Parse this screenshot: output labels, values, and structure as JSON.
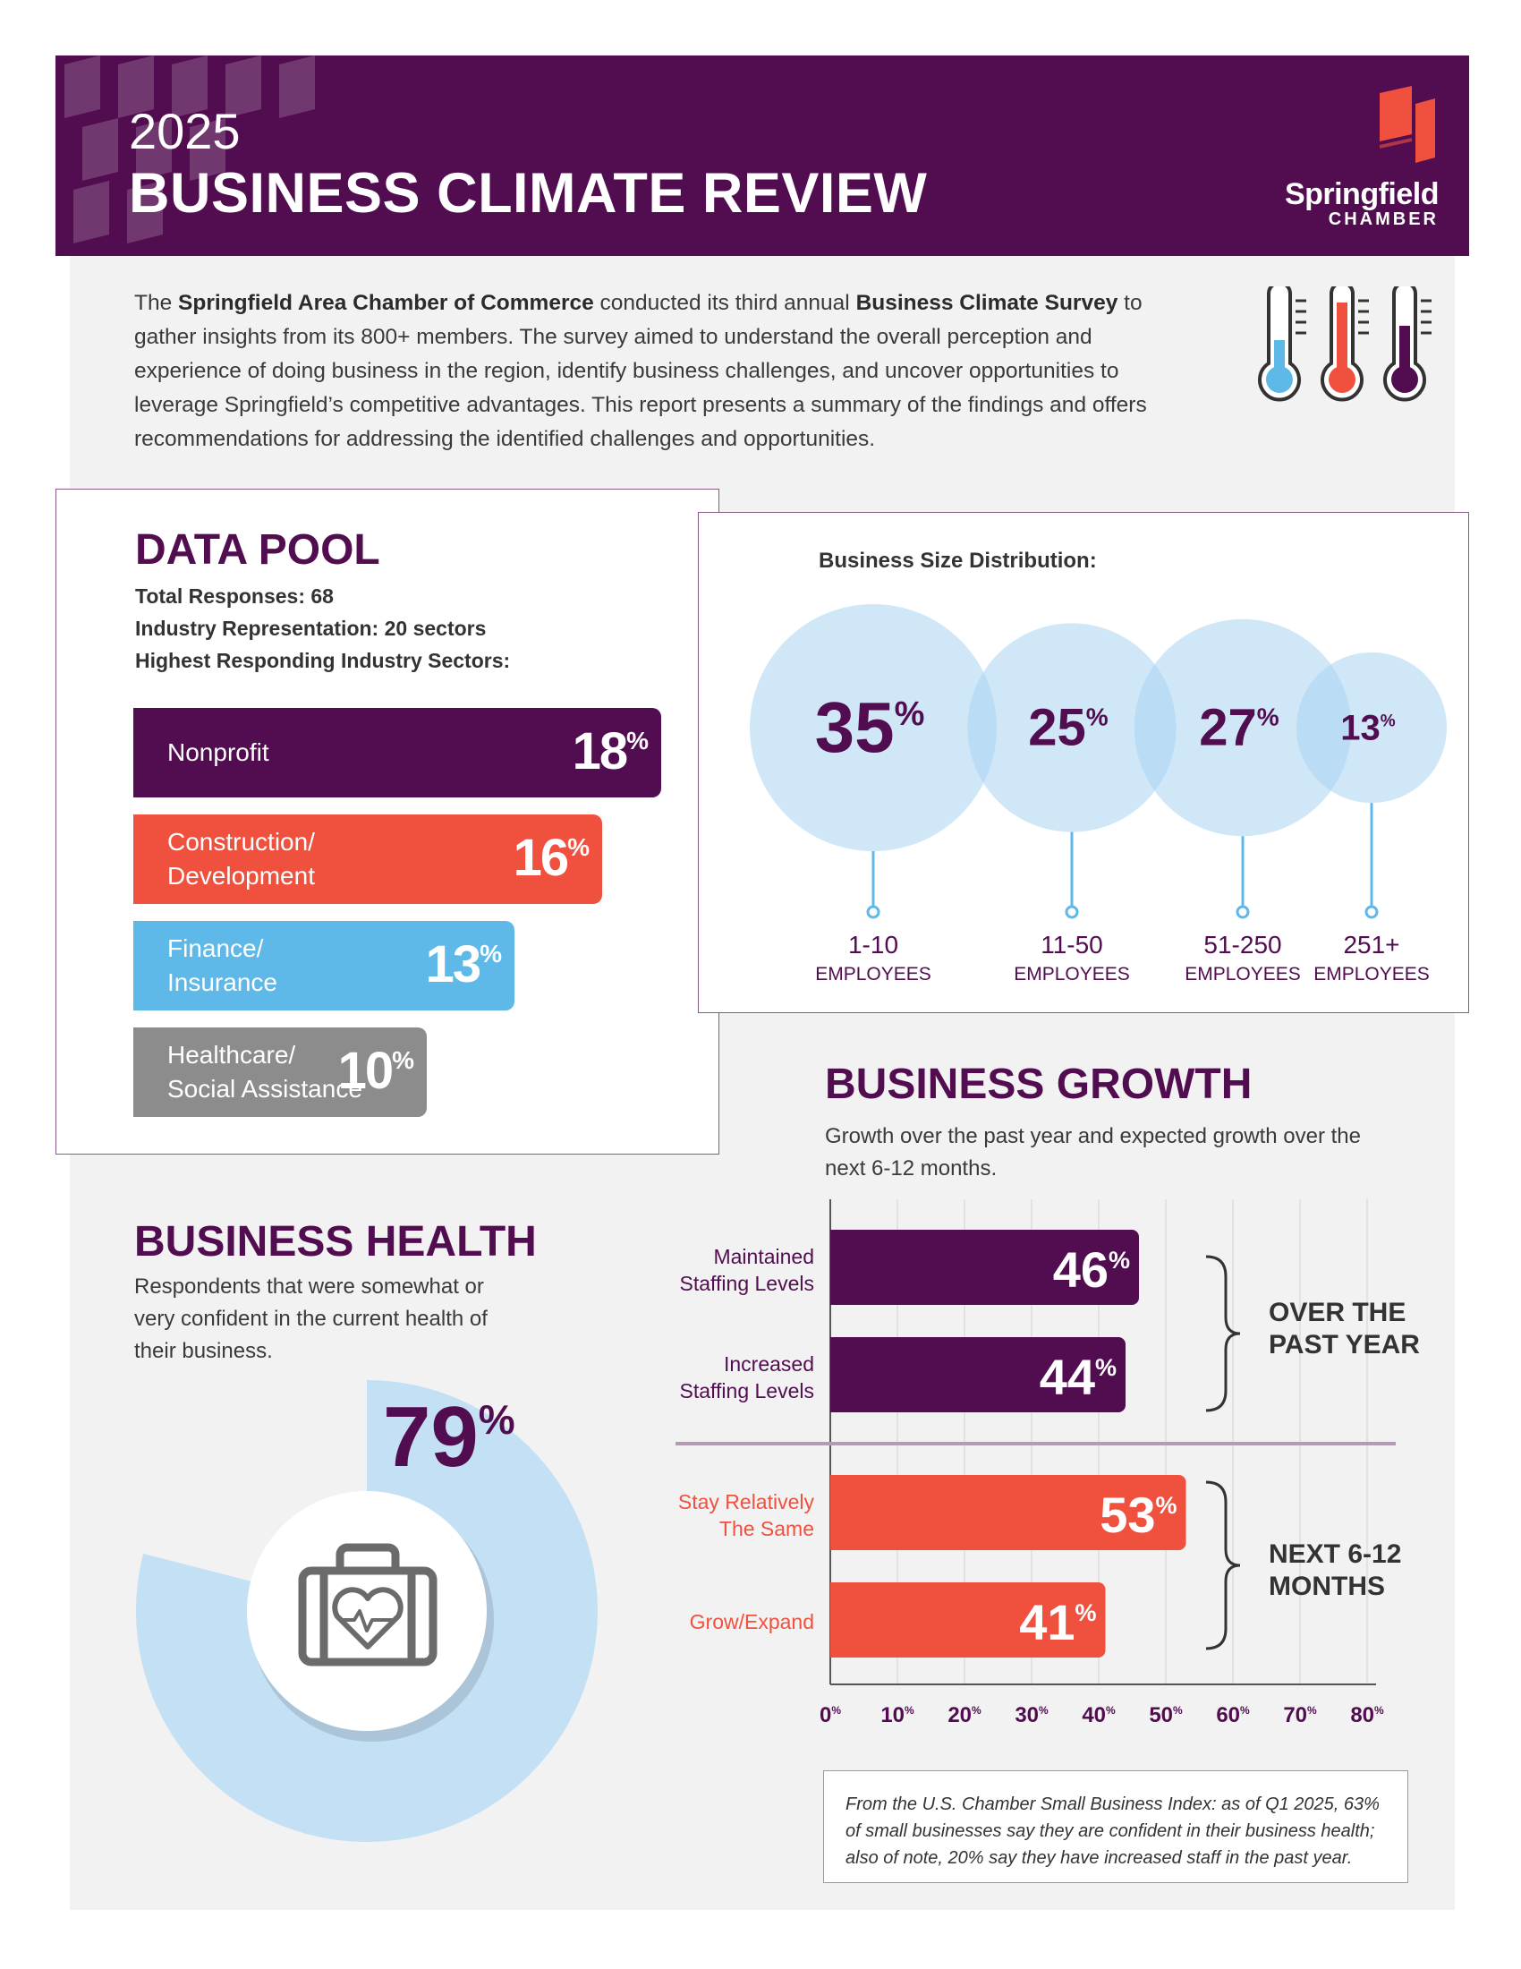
{
  "header": {
    "year": "2025",
    "title": "BUSINESS CLIMATE REVIEW",
    "logo_name": "Springfield",
    "logo_sub": "CHAMBER"
  },
  "colors": {
    "purple": "#520d50",
    "orange": "#f0513e",
    "blue": "#5fb9e8",
    "gray": "#8c8c8c",
    "light_blue": "#c3e0f5"
  },
  "intro": {
    "p1": "The ",
    "org": "Springfield Area Chamber of Commerce",
    "p2": " conducted its third annual ",
    "survey": "Business Climate Survey",
    "p3": " to gather insights from its 800+ members. The survey aimed to understand the overall perception and experience of doing business in the region, identify business challenges, and uncover opportunities to leverage Springfield’s competitive advantages. This report presents a summary of the findings and offers recommendations for addressing the identified challenges and opportunities."
  },
  "data_pool": {
    "title": "DATA POOL",
    "total_responses": "Total Responses: 68",
    "industry_rep": "Industry Representation: 20 sectors",
    "highest": "Highest Responding Industry Sectors:"
  },
  "business_size": {
    "title": "Business Size Distribution:"
  },
  "growth": {
    "title": "BUSINESS GROWTH",
    "subtitle": "Growth over the past year and expected growth over the next 6-12 months.",
    "group1": "OVER THE PAST YEAR",
    "group2": "NEXT 6-12 MONTHS"
  },
  "health": {
    "title": "BUSINESS HEALTH",
    "subtitle": "Respondents that were somewhat or very confident in the current health of their business."
  },
  "note": "From the U.S. Chamber Small Business Index: as of Q1 2025, 63% of small businesses say they are confident in their business health; also of note, 20% say they have increased staff in the past year.",
  "chart_data": [
    {
      "type": "bar",
      "orientation": "horizontal",
      "title": "Highest Responding Industry Sectors:",
      "categories": [
        "Nonprofit",
        "Construction/\nDevelopment",
        "Finance/\nInsurance",
        "Healthcare/\nSocial Assistance"
      ],
      "values": [
        18,
        16,
        13,
        10
      ],
      "unit": "%",
      "colors": [
        "#520d50",
        "#f0513e",
        "#5fb9e8",
        "#8c8c8c"
      ]
    },
    {
      "type": "bubble",
      "title": "Business Size Distribution:",
      "categories": [
        "1-10",
        "11-50",
        "51-250",
        "251+"
      ],
      "category_sub": "EMPLOYEES",
      "values": [
        35,
        25,
        27,
        13
      ],
      "unit": "%"
    },
    {
      "type": "bar",
      "orientation": "horizontal",
      "title": "BUSINESS GROWTH",
      "categories": [
        "Maintained\nStaffing Levels",
        "Increased\nStaffing Levels",
        "Stay Relatively\nThe Same",
        "Grow/Expand"
      ],
      "values": [
        46,
        44,
        53,
        41
      ],
      "unit": "%",
      "groups": [
        "OVER THE PAST YEAR",
        "OVER THE PAST YEAR",
        "NEXT 6-12 MONTHS",
        "NEXT 6-12 MONTHS"
      ],
      "xlim": [
        0,
        80
      ],
      "xticks": [
        0,
        10,
        20,
        30,
        40,
        50,
        60,
        70,
        80
      ],
      "grid": true
    },
    {
      "type": "donut",
      "title": "BUSINESS HEALTH",
      "value": 79,
      "unit": "%",
      "icon": "health-briefcase-icon"
    }
  ]
}
